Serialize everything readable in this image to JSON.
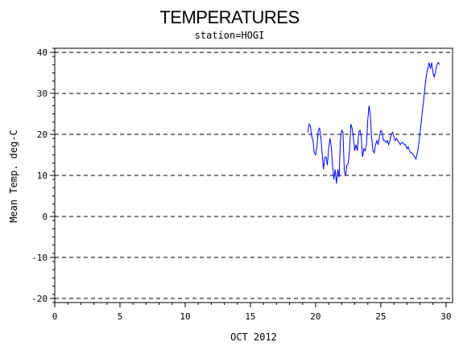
{
  "chart_data": {
    "type": "line",
    "title": "TEMPERATURES",
    "subtitle": "station=HOGI",
    "xlabel": "OCT 2012",
    "ylabel": "Mean Temp. deg-C",
    "xlim": [
      0,
      30.5
    ],
    "ylim": [
      -21,
      41
    ],
    "xticks": [
      0,
      5,
      10,
      15,
      20,
      25,
      30
    ],
    "yticks": [
      -20,
      -10,
      0,
      10,
      20,
      30,
      40
    ],
    "grid": "horizontal-dashed",
    "colors": {
      "series": "#0000ff",
      "axes": "#000000"
    },
    "series": [
      {
        "x": [
          19.4,
          19.5,
          19.6,
          19.7,
          19.8,
          19.9,
          20.0,
          20.1,
          20.2,
          20.3,
          20.4,
          20.5,
          20.6,
          20.7,
          20.8,
          20.9,
          21.0,
          21.1,
          21.2,
          21.3,
          21.4,
          21.5,
          21.6,
          21.7,
          21.8,
          21.9,
          22.0,
          22.1,
          22.2,
          22.3,
          22.4,
          22.5,
          22.6,
          22.7,
          22.8,
          22.9,
          23.0,
          23.1,
          23.2,
          23.3,
          23.4,
          23.5,
          23.6,
          23.7,
          23.8,
          23.9,
          24.0,
          24.1,
          24.2,
          24.3,
          24.4,
          24.5,
          24.6,
          24.7,
          24.8,
          24.9,
          25.0,
          25.1,
          25.2,
          25.3,
          25.4,
          25.5,
          25.6,
          25.7,
          25.8,
          25.9,
          26.0,
          26.1,
          26.2,
          26.3,
          26.4,
          26.5,
          26.6,
          26.7,
          26.8,
          26.9,
          27.0,
          27.1,
          27.2,
          27.3,
          27.4,
          27.5,
          27.6,
          27.7,
          27.8,
          27.9,
          28.0,
          28.1,
          28.2,
          28.3,
          28.4,
          28.5,
          28.6,
          28.7,
          28.8,
          28.9,
          29.0,
          29.1,
          29.2,
          29.3,
          29.4,
          29.5
        ],
        "y": [
          20.5,
          22.5,
          22.0,
          19.5,
          18.5,
          15.5,
          15.0,
          17.0,
          21.0,
          21.5,
          19.5,
          15.5,
          11.5,
          14.5,
          14.5,
          12.5,
          16.5,
          19.0,
          17.0,
          12.5,
          9.0,
          11.5,
          8.0,
          11.5,
          9.5,
          18.5,
          21.0,
          20.5,
          11.0,
          10.0,
          12.5,
          13.0,
          16.0,
          22.5,
          21.5,
          19.0,
          16.0,
          17.5,
          16.0,
          20.5,
          21.0,
          19.5,
          14.5,
          16.5,
          16.0,
          17.5,
          23.5,
          27.0,
          24.5,
          19.0,
          16.0,
          15.5,
          17.5,
          18.5,
          17.5,
          19.5,
          21.0,
          20.5,
          18.5,
          18.5,
          18.0,
          18.5,
          17.5,
          18.5,
          20.0,
          20.5,
          19.5,
          18.5,
          19.0,
          18.5,
          18.0,
          17.5,
          18.0,
          18.0,
          17.5,
          17.5,
          16.5,
          17.0,
          16.0,
          15.5,
          15.5,
          15.0,
          14.5,
          14.0,
          15.5,
          17.5,
          20.0,
          23.0,
          26.0,
          29.0,
          32.0,
          34.5,
          36.0,
          37.5,
          36.0,
          37.5,
          35.0,
          34.0,
          35.5,
          37.0,
          37.5,
          37.0
        ]
      }
    ]
  }
}
